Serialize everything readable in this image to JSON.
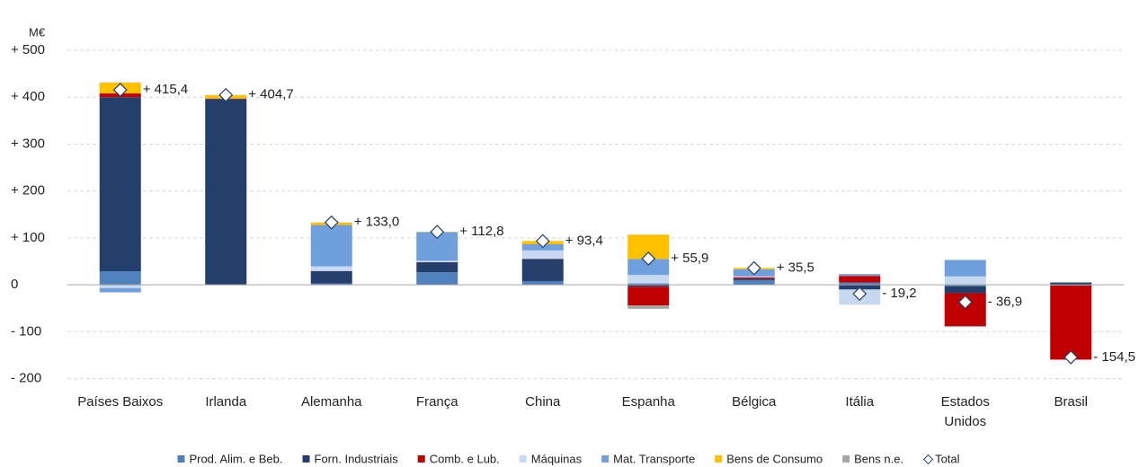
{
  "chart_data": {
    "type": "stacked-bar",
    "y_label": "M€",
    "categories": [
      "Países Baixos",
      "Irlanda",
      "Alemanha",
      "França",
      "China",
      "Espanha",
      "Bélgica",
      "Itália",
      "Estados Unidos",
      "Brasil"
    ],
    "series": [
      {
        "name": "Prod. Alim. e Beb.",
        "color": "#4f81bd",
        "values": [
          29,
          0,
          3,
          27,
          8,
          3,
          10,
          5,
          -3,
          -1.5
        ]
      },
      {
        "name": "Forn. Industriais",
        "color": "#243f6b",
        "values": [
          371,
          396,
          26,
          21,
          47,
          -4,
          3,
          -10,
          -15,
          5
        ]
      },
      {
        "name": "Comb. e Lub.",
        "color": "#c00000",
        "values": [
          8,
          1,
          0.5,
          0.3,
          0.4,
          -40,
          3,
          14,
          -70,
          -158
        ]
      },
      {
        "name": "Máquinas",
        "color": "#c6d9f0",
        "values": [
          -7,
          0,
          10,
          3,
          18,
          18,
          2,
          -32,
          18,
          0
        ]
      },
      {
        "name": "Mat. Transporte",
        "color": "#6f9fdc",
        "values": [
          -9,
          0.5,
          88,
          61,
          13,
          34,
          15,
          4,
          35,
          0
        ]
      },
      {
        "name": "Bens de Consumo",
        "color": "#ffc000",
        "values": [
          23,
          7,
          5,
          0.5,
          7,
          52,
          3,
          0,
          0,
          0
        ]
      },
      {
        "name": "Bens n.e.",
        "color": "#a6a6a6",
        "values": [
          0.4,
          0.2,
          0.5,
          0,
          0,
          -7.1,
          -0.5,
          -0.2,
          -1.9,
          0
        ]
      }
    ],
    "total": {
      "name": "Total",
      "values": [
        415.4,
        404.7,
        133.0,
        112.8,
        93.4,
        55.9,
        35.5,
        -19.2,
        -36.9,
        -154.5
      ],
      "value_labels": [
        "+ 415,4",
        "+ 404,7",
        "+ 133,0",
        "+ 112,8",
        "+ 93,4",
        "+ 55,9",
        "+ 35,5",
        "- 19,2",
        "- 36,9",
        "- 154,5"
      ],
      "label_color": "#595959",
      "negative_label_color": "#e00000"
    },
    "ylim": [
      -200,
      500
    ],
    "yticks": [
      {
        "value": -200,
        "label": "- 200"
      },
      {
        "value": -100,
        "label": "- 100"
      },
      0,
      {
        "value": 100,
        "label": "+ 100"
      },
      {
        "value": 200,
        "label": "+ 200"
      },
      {
        "value": 300,
        "label": "+ 300"
      },
      {
        "value": 400,
        "label": "+ 400"
      },
      {
        "value": 500,
        "label": "+ 500"
      }
    ],
    "grid": true,
    "legend": "bottom"
  }
}
